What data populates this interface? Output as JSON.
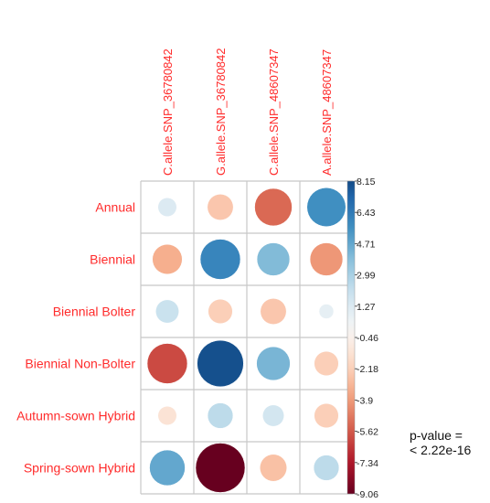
{
  "chart_data": {
    "type": "corrplot-circle",
    "columns": [
      "C.allele.SNP_36780842",
      "G.allele.SNP_36780842",
      "C.allele.SNP_48607347",
      "A.allele.SNP_48607347"
    ],
    "rows": [
      "Annual",
      "Biennial",
      "Biennial Bolter",
      "Biennial Non-Bolter",
      "Autumn-sown Hybrid",
      "Spring-sown Hybrid"
    ],
    "values": [
      [
        1.3,
        -2.5,
        -5.2,
        5.6
      ],
      [
        -3.3,
        6.0,
        4.0,
        -4.0
      ],
      [
        2.0,
        -2.2,
        -2.5,
        0.8
      ],
      [
        -6.0,
        8.0,
        4.2,
        -2.2
      ],
      [
        -1.3,
        2.4,
        1.7,
        -2.2
      ],
      [
        4.7,
        -9.06,
        -2.7,
        2.4
      ]
    ],
    "legend": {
      "ticks": [
        "8.15",
        "6.43",
        "4.71",
        "2.99",
        "1.27",
        "-0.46",
        "-2.18",
        "-3.9",
        "-5.62",
        "-7.34",
        "-9.06"
      ],
      "min": -9.06,
      "max": 8.15
    },
    "label_color": "#ff2b2b",
    "palette": {
      "negative_end": "#67001f",
      "mid": "#f7f7f7",
      "positive_end": "#053061"
    }
  },
  "annotation": {
    "line1": "p-value =",
    "line2": "< 2.22e-16"
  }
}
